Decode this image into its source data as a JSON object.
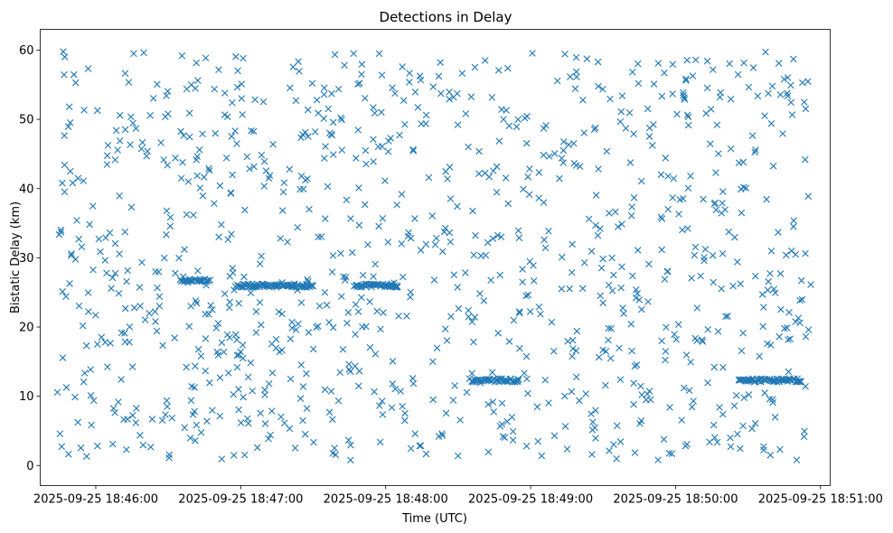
{
  "chart_data": {
    "type": "scatter",
    "title": "Detections in Delay",
    "xlabel": "Time (UTC)",
    "ylabel": "Bistatic Delay (km)",
    "marker": "x",
    "color": "#1f77b4",
    "xlim_seconds": [
      -23,
      304
    ],
    "ylim": [
      -2.9,
      63.0
    ],
    "x_ticks": [
      {
        "seconds": 0,
        "label": "2025-09-25 18:46:00"
      },
      {
        "seconds": 60,
        "label": "2025-09-25 18:47:00"
      },
      {
        "seconds": 120,
        "label": "2025-09-25 18:48:00"
      },
      {
        "seconds": 180,
        "label": "2025-09-25 18:49:00"
      },
      {
        "seconds": 240,
        "label": "2025-09-25 18:50:00"
      },
      {
        "seconds": 300,
        "label": "2025-09-25 18:51:00"
      }
    ],
    "y_ticks": [
      0,
      10,
      20,
      30,
      40,
      50,
      60
    ],
    "time_range_seconds": [
      -16,
      296
    ],
    "delay_range_km": [
      0.5,
      60
    ],
    "tracks": [
      {
        "t_start": 35,
        "t_end": 47,
        "delay": 26.7
      },
      {
        "t_start": 58,
        "t_end": 90,
        "delay": 26.0
      },
      {
        "t_start": 107,
        "t_end": 125,
        "delay": 26.0
      },
      {
        "t_start": 155,
        "t_end": 175,
        "delay": 12.3
      },
      {
        "t_start": 266,
        "t_end": 292,
        "delay": 12.3
      }
    ]
  }
}
